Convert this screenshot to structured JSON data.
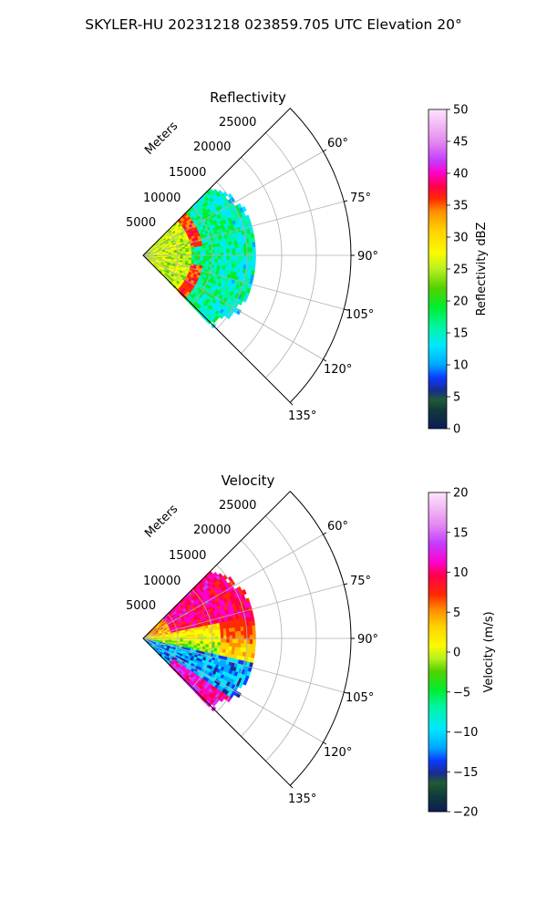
{
  "figure": {
    "suptitle": "SKYLER-HU  20231218  023859.705 UTC Elevation 20°"
  },
  "chart_data": [
    {
      "type": "heatmap",
      "projection": "polar-sector",
      "title": "Reflectivity",
      "range_label": "Meters",
      "theta_ticks": [
        "60°",
        "75°",
        "90°",
        "105°",
        "120°",
        "135°"
      ],
      "theta_tick_values": [
        60,
        75,
        90,
        105,
        120,
        135
      ],
      "theta_range_deg": [
        45,
        135
      ],
      "r_ticks": [
        "5000",
        "10000",
        "15000",
        "20000",
        "25000"
      ],
      "r_tick_values": [
        5000,
        10000,
        15000,
        20000,
        25000
      ],
      "r_max": 30000,
      "grid": true,
      "colorbar": {
        "label": "Reflectivity dBZ",
        "min": 0,
        "max": 50,
        "ticks": [
          "0",
          "5",
          "10",
          "15",
          "20",
          "25",
          "30",
          "35",
          "40",
          "45",
          "50"
        ],
        "tick_values": [
          0,
          5,
          10,
          15,
          20,
          25,
          30,
          35,
          40,
          45,
          50
        ]
      },
      "data_extent": {
        "azimuth_deg": [
          45,
          135
        ],
        "range_m": [
          0,
          16000
        ]
      },
      "features": [
        {
          "name": "enhanced reflectivity band",
          "range_m": 7500,
          "value_dbz": 37
        },
        {
          "name": "near-radar echoes",
          "range_m": [
            0,
            7000
          ],
          "value_dbz": 27
        },
        {
          "name": "outer echoes",
          "range_m": [
            9000,
            16000
          ],
          "value_dbz": 18
        }
      ]
    },
    {
      "type": "heatmap",
      "projection": "polar-sector",
      "title": "Velocity",
      "range_label": "Meters",
      "theta_ticks": [
        "60°",
        "75°",
        "90°",
        "105°",
        "120°",
        "135°"
      ],
      "theta_tick_values": [
        60,
        75,
        90,
        105,
        120,
        135
      ],
      "theta_range_deg": [
        45,
        135
      ],
      "r_ticks": [
        "5000",
        "10000",
        "15000",
        "20000",
        "25000"
      ],
      "r_tick_values": [
        5000,
        10000,
        15000,
        20000,
        25000
      ],
      "r_max": 30000,
      "grid": true,
      "colorbar": {
        "label": "Velocity (m/s)",
        "min": -20,
        "max": 20,
        "ticks": [
          "−20",
          "−15",
          "−10",
          "−5",
          "0",
          "5",
          "10",
          "15",
          "20"
        ],
        "tick_values": [
          -20,
          -15,
          -10,
          -5,
          0,
          5,
          10,
          15,
          20
        ]
      },
      "data_extent": {
        "azimuth_deg": [
          45,
          135
        ],
        "range_m": [
          0,
          16000
        ]
      },
      "features": [
        {
          "name": "outbound region",
          "azimuth_deg": [
            45,
            75
          ],
          "value_ms": 12
        },
        {
          "name": "near-zero region",
          "azimuth_deg": [
            80,
            100
          ],
          "value_ms": 1
        },
        {
          "name": "inbound region",
          "azimuth_deg": [
            105,
            135
          ],
          "value_ms": -11
        }
      ]
    }
  ]
}
